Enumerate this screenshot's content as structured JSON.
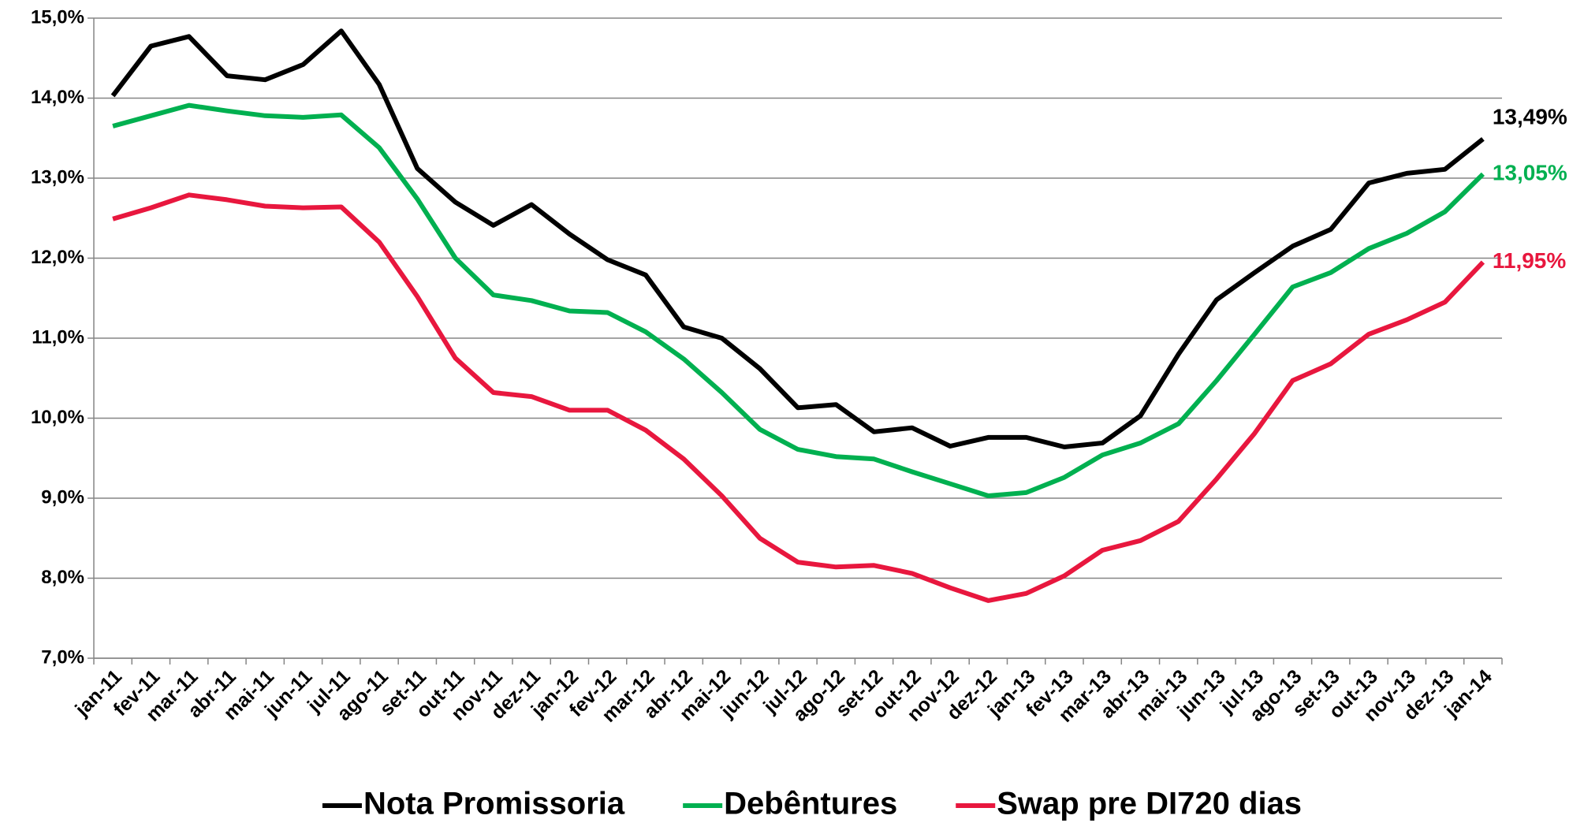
{
  "chart_data": {
    "type": "line",
    "categories": [
      "jan-11",
      "fev-11",
      "mar-11",
      "abr-11",
      "mai-11",
      "jun-11",
      "jul-11",
      "ago-11",
      "set-11",
      "out-11",
      "nov-11",
      "dez-11",
      "jan-12",
      "fev-12",
      "mar-12",
      "abr-12",
      "mai-12",
      "jun-12",
      "jul-12",
      "ago-12",
      "set-12",
      "out-12",
      "nov-12",
      "dez-12",
      "jan-13",
      "fev-13",
      "mar-13",
      "abr-13",
      "mai-13",
      "jun-13",
      "jul-13",
      "ago-13",
      "set-13",
      "out-13",
      "nov-13",
      "dez-13",
      "jan-14"
    ],
    "series": [
      {
        "name": "Nota Promissoria",
        "color": "#000000",
        "values": [
          14.03,
          14.65,
          14.77,
          14.28,
          14.23,
          14.42,
          14.84,
          14.17,
          13.12,
          12.7,
          12.41,
          12.67,
          12.3,
          11.98,
          11.79,
          11.14,
          11.0,
          10.62,
          10.13,
          10.17,
          9.83,
          9.88,
          9.65,
          9.76,
          9.76,
          9.64,
          9.69,
          10.03,
          10.8,
          11.48,
          11.82,
          12.15,
          12.36,
          12.94,
          13.06,
          13.11,
          13.49
        ],
        "value_labels": [
          null,
          null,
          null,
          null,
          null,
          null,
          null,
          null,
          null,
          null,
          null,
          null,
          null,
          null,
          null,
          null,
          null,
          null,
          null,
          null,
          null,
          null,
          null,
          null,
          null,
          null,
          null,
          null,
          null,
          null,
          null,
          null,
          null,
          null,
          null,
          null,
          "13,49%"
        ]
      },
      {
        "name": "Debêntures",
        "color": "#00b050",
        "values": [
          13.65,
          13.78,
          13.91,
          13.84,
          13.78,
          13.76,
          13.79,
          13.38,
          12.74,
          12.0,
          11.54,
          11.47,
          11.34,
          11.32,
          11.08,
          10.74,
          10.32,
          9.86,
          9.61,
          9.52,
          9.49,
          9.33,
          9.18,
          9.03,
          9.07,
          9.26,
          9.54,
          9.69,
          9.93,
          10.47,
          11.05,
          11.64,
          11.82,
          12.12,
          12.31,
          12.58,
          13.05
        ],
        "value_labels": [
          null,
          null,
          null,
          null,
          null,
          null,
          null,
          null,
          null,
          null,
          null,
          null,
          null,
          null,
          null,
          null,
          null,
          null,
          null,
          null,
          null,
          null,
          null,
          null,
          null,
          null,
          null,
          null,
          null,
          null,
          null,
          null,
          null,
          null,
          null,
          null,
          "13,05%"
        ]
      },
      {
        "name": "Swap pre DI720 dias",
        "color": "#e8173e",
        "values": [
          12.49,
          12.63,
          12.79,
          12.73,
          12.65,
          12.63,
          12.64,
          12.2,
          11.52,
          10.75,
          10.32,
          10.27,
          10.1,
          10.1,
          9.85,
          9.49,
          9.03,
          8.5,
          8.2,
          8.14,
          8.16,
          8.06,
          7.88,
          7.72,
          7.81,
          8.03,
          8.35,
          8.47,
          8.71,
          9.24,
          9.81,
          10.47,
          10.68,
          11.05,
          11.23,
          11.45,
          11.95
        ],
        "value_labels": [
          null,
          null,
          null,
          null,
          null,
          null,
          null,
          null,
          null,
          null,
          null,
          null,
          null,
          null,
          null,
          null,
          null,
          null,
          null,
          null,
          null,
          null,
          null,
          null,
          null,
          null,
          null,
          null,
          null,
          null,
          null,
          null,
          null,
          null,
          null,
          null,
          "11,95%"
        ]
      }
    ],
    "ylim": [
      7,
      15
    ],
    "yticks": [
      {
        "value": 7,
        "label": "7,0%"
      },
      {
        "value": 8,
        "label": "8,0%"
      },
      {
        "value": 9,
        "label": "9,0%"
      },
      {
        "value": 10,
        "label": "10,0%"
      },
      {
        "value": 11,
        "label": "11,0%"
      },
      {
        "value": 12,
        "label": "12,0%"
      },
      {
        "value": 13,
        "label": "13,0%"
      },
      {
        "value": 14,
        "label": "14,0%"
      },
      {
        "value": 15,
        "label": "15,0%"
      }
    ],
    "grid": true,
    "legend": "bottom"
  }
}
